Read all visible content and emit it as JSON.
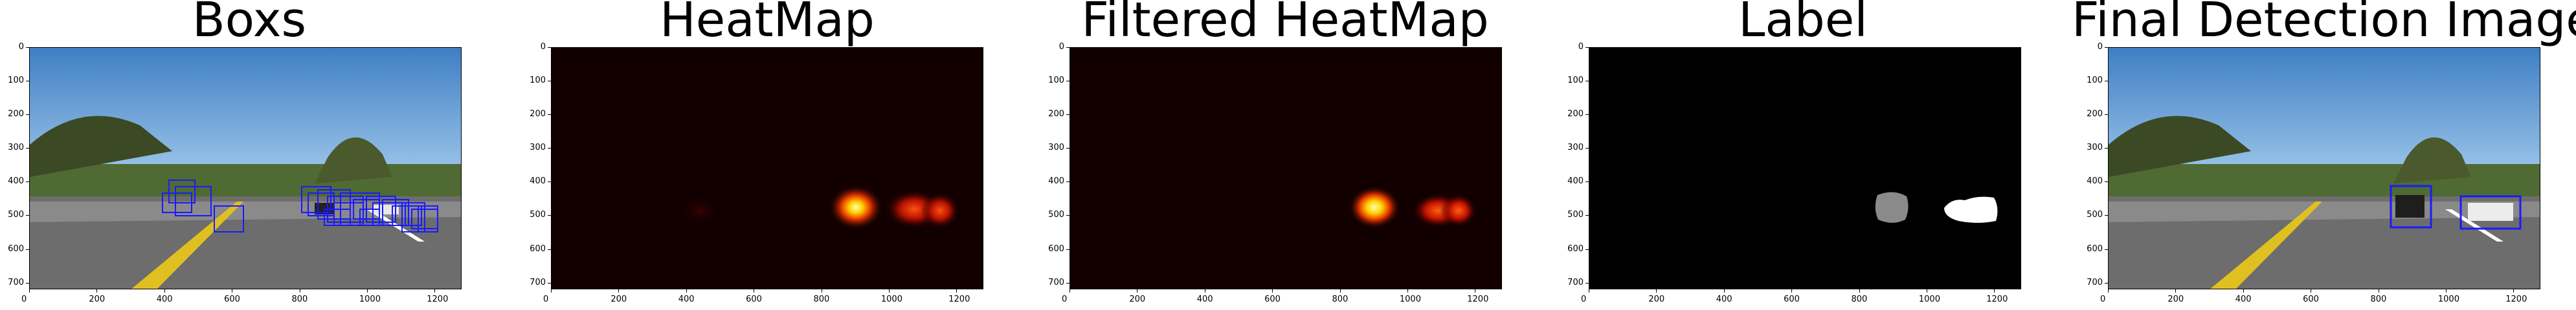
{
  "panels": [
    {
      "title": "Boxs"
    },
    {
      "title": "HeatMap"
    },
    {
      "title": "Filtered HeatMap"
    },
    {
      "title": "Label"
    },
    {
      "title": "Final Detection Image"
    }
  ],
  "axes": {
    "x_ticks": [
      "0",
      "200",
      "400",
      "600",
      "800",
      "1000",
      "1200"
    ],
    "y_ticks": [
      "0",
      "100",
      "200",
      "300",
      "400",
      "500",
      "600",
      "700"
    ]
  },
  "colors": {
    "box_blue": "#1a1aff",
    "heat_bg": "#120000",
    "label_bg": "#000000"
  }
}
